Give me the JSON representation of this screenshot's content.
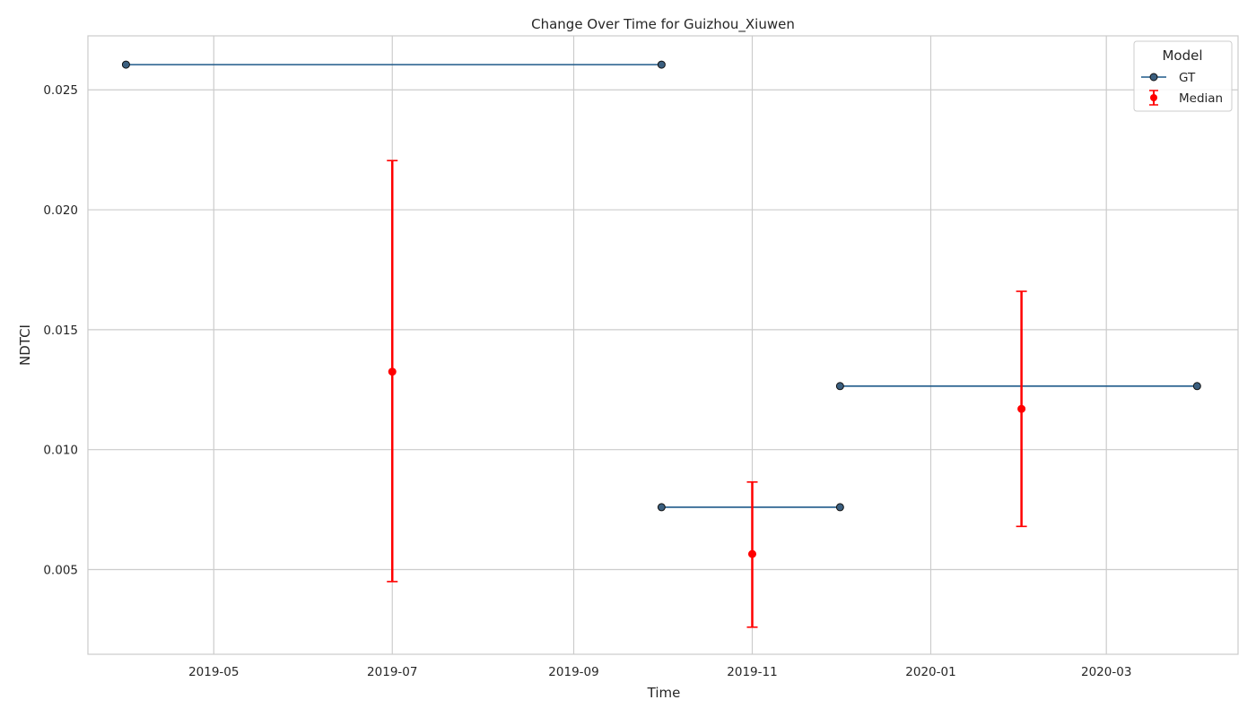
{
  "chart_data": {
    "type": "line",
    "title": "Change Over Time for Guizhou_Xiuwen",
    "xlabel": "Time",
    "ylabel": "NDTCI",
    "xlim": [
      "2019-03-19",
      "2020-04-15"
    ],
    "ylim": [
      0.00147,
      0.02725
    ],
    "x_ticks": [
      "2019-05-01",
      "2019-07-01",
      "2019-09-01",
      "2019-11-01",
      "2020-01-01",
      "2020-03-01"
    ],
    "x_tick_labels": [
      "2019-05",
      "2019-07",
      "2019-09",
      "2019-11",
      "2020-01",
      "2020-03"
    ],
    "y_ticks": [
      0.005,
      0.01,
      0.015,
      0.02,
      0.025
    ],
    "y_tick_labels": [
      "0.005",
      "0.010",
      "0.015",
      "0.020",
      "0.025"
    ],
    "grid": true,
    "legend": {
      "title": "Model",
      "placement": "top-right"
    },
    "gt": {
      "name": "GT",
      "color": "#1f5a8a",
      "marker_fill": "#3b5f7f",
      "segments": [
        [
          {
            "x": "2019-04-01",
            "y": 0.02605
          },
          {
            "x": "2019-10-01",
            "y": 0.02605
          }
        ],
        [
          {
            "x": "2019-10-01",
            "y": 0.0076
          },
          {
            "x": "2019-12-01",
            "y": 0.0076
          }
        ],
        [
          {
            "x": "2019-12-01",
            "y": 0.01265
          },
          {
            "x": "2020-04-01",
            "y": 0.01265
          }
        ]
      ]
    },
    "median": {
      "name": "Median",
      "color": "#ff0000",
      "points": [
        {
          "x": "2019-07-01",
          "y": 0.01325,
          "low": 0.0045,
          "high": 0.02205
        },
        {
          "x": "2019-11-01",
          "y": 0.00565,
          "low": 0.0026,
          "high": 0.00865
        },
        {
          "x": "2020-02-01",
          "y": 0.0117,
          "low": 0.0068,
          "high": 0.0166
        }
      ]
    }
  }
}
